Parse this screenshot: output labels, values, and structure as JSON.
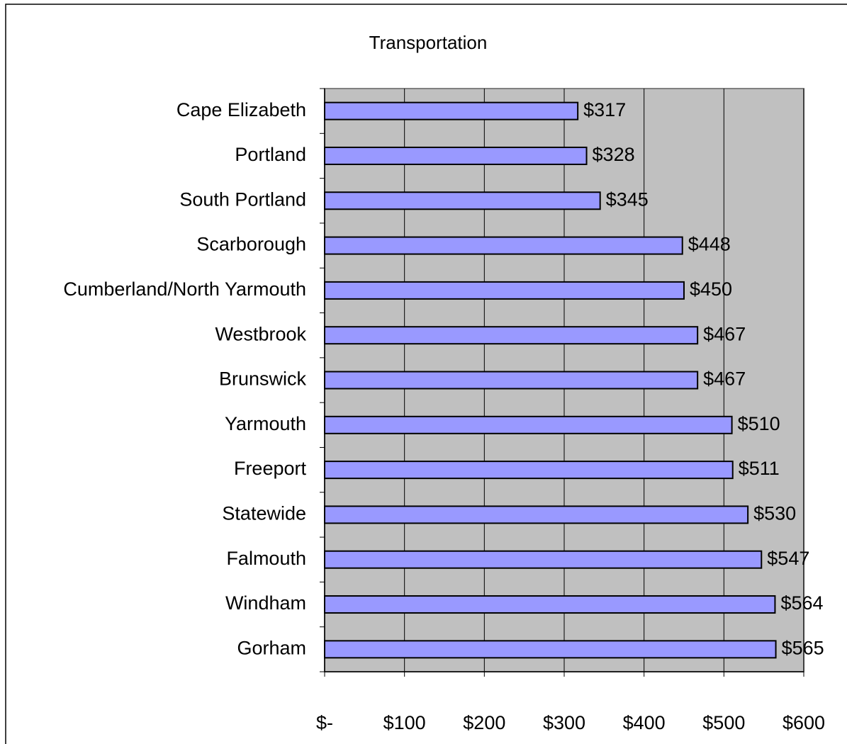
{
  "chart_data": {
    "type": "bar",
    "orientation": "horizontal",
    "title": "Transportation",
    "categories": [
      "Cape Elizabeth",
      "Portland",
      "South Portland",
      "Scarborough",
      "Cumberland/North Yarmouth",
      "Westbrook",
      "Brunswick",
      "Yarmouth",
      "Freeport",
      "Statewide",
      "Falmouth",
      "Windham",
      "Gorham"
    ],
    "values": [
      317,
      328,
      345,
      448,
      450,
      467,
      467,
      510,
      511,
      530,
      547,
      564,
      565
    ],
    "value_labels": [
      "$317",
      "$328",
      "$345",
      "$448",
      "$450",
      "$467",
      "$467",
      "$510",
      "$511",
      "$530",
      "$547",
      "$564",
      "$565"
    ],
    "color": "#9999ff",
    "xlim": [
      0,
      600
    ],
    "xticks": [
      {
        "value": 0,
        "label": "$-"
      },
      {
        "value": 100,
        "label": "$100"
      },
      {
        "value": 200,
        "label": "$200"
      },
      {
        "value": 300,
        "label": "$300"
      },
      {
        "value": 400,
        "label": "$400"
      },
      {
        "value": 500,
        "label": "$500"
      },
      {
        "value": 600,
        "label": "$600"
      }
    ],
    "grid": true
  }
}
